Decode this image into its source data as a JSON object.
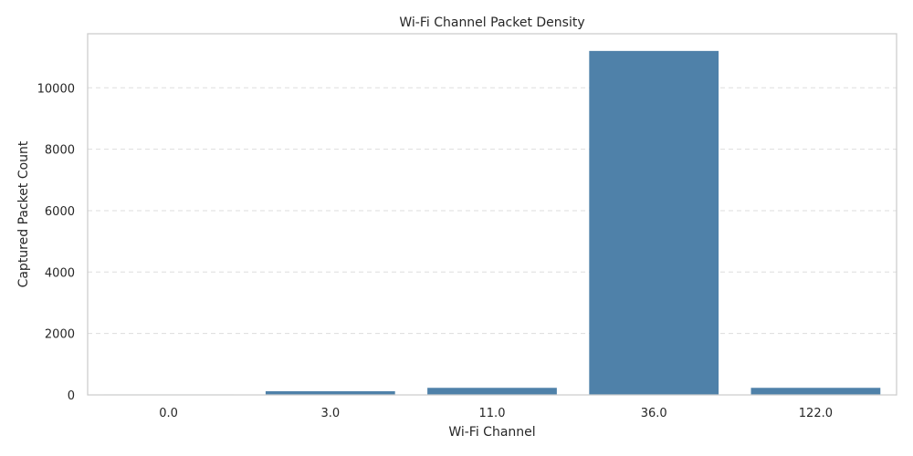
{
  "chart_data": {
    "type": "bar",
    "title": "Wi-Fi Channel Packet Density",
    "xlabel": "Wi-Fi Channel",
    "ylabel": "Captured Packet Count",
    "categories": [
      "0.0",
      "3.0",
      "11.0",
      "36.0",
      "122.0"
    ],
    "values": [
      15,
      120,
      230,
      11200,
      230
    ],
    "ylim": [
      0,
      11760
    ],
    "yticks": [
      0,
      2000,
      4000,
      6000,
      8000,
      10000
    ],
    "grid": "y-dashed",
    "bar_color": "#4f81a9"
  }
}
